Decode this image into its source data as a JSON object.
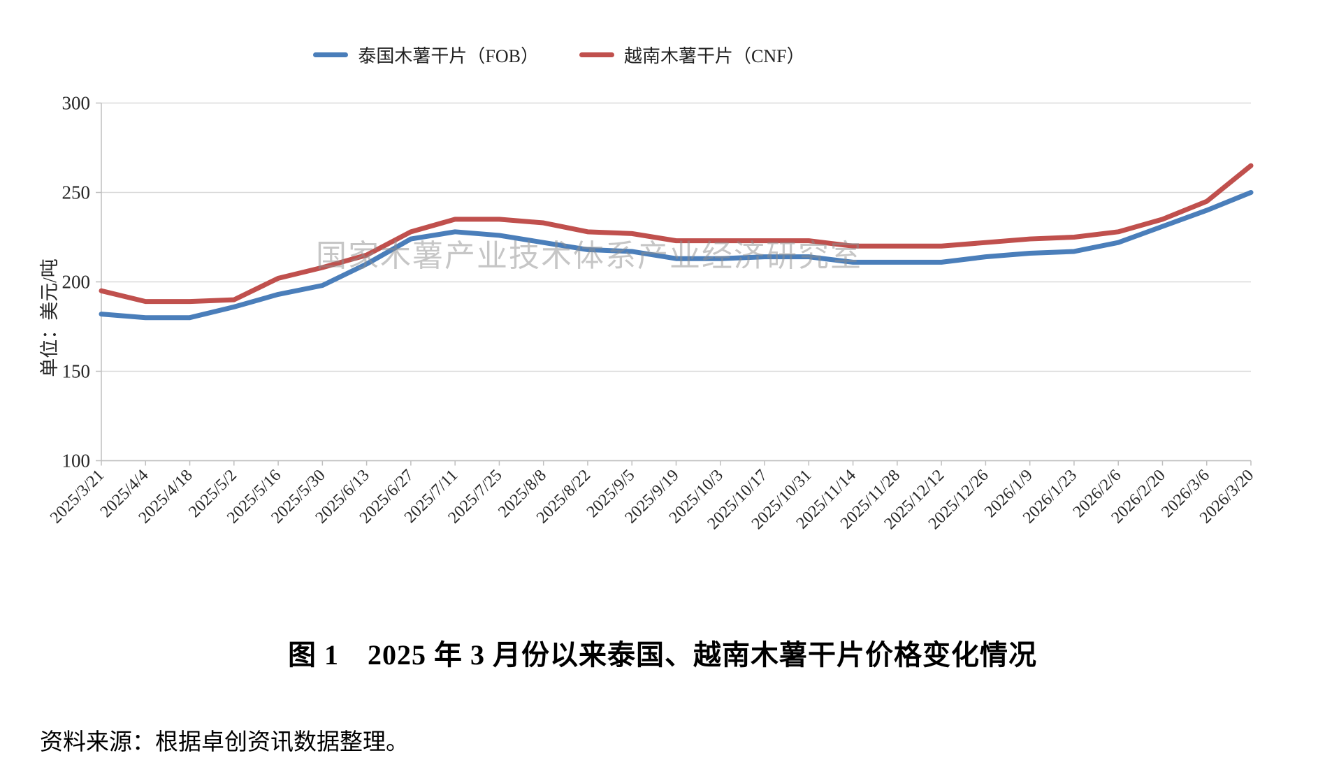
{
  "chart_data": {
    "type": "line",
    "title": "图 1　2025 年 3 月份以来泰国、越南木薯干片价格变化情况",
    "unit_label": "单位：美元/吨",
    "watermark": "国家木薯产业技术体系产业经济研究室",
    "source": "资料来源：根据卓创资讯数据整理。",
    "legend_position": "top",
    "grid": "horizontal",
    "ylim": [
      100,
      300
    ],
    "yticks": [
      100,
      150,
      200,
      250,
      300
    ],
    "categories": [
      "2025/3/21",
      "2025/4/4",
      "2025/4/18",
      "2025/5/2",
      "2025/5/16",
      "2025/5/30",
      "2025/6/13",
      "2025/6/27",
      "2025/7/11",
      "2025/7/25",
      "2025/8/8",
      "2025/8/22",
      "2025/9/5",
      "2025/9/19",
      "2025/10/3",
      "2025/10/17",
      "2025/10/31",
      "2025/11/14",
      "2025/11/28",
      "2025/12/12",
      "2025/12/26",
      "2026/1/9",
      "2026/1/23",
      "2026/2/6",
      "2026/2/20",
      "2026/3/6",
      "2026/3/20"
    ],
    "series": [
      {
        "name": "泰国木薯干片（FOB）",
        "color": "#4a7eba",
        "values": [
          182,
          180,
          180,
          186,
          193,
          198,
          210,
          224,
          228,
          226,
          222,
          218,
          217,
          213,
          213,
          214,
          214,
          211,
          211,
          211,
          214,
          216,
          217,
          222,
          231,
          240,
          250
        ]
      },
      {
        "name": "越南木薯干片（CNF）",
        "color": "#c0504d",
        "values": [
          195,
          189,
          189,
          190,
          202,
          208,
          215,
          228,
          235,
          235,
          233,
          228,
          227,
          223,
          223,
          223,
          223,
          220,
          220,
          220,
          222,
          224,
          225,
          228,
          235,
          245,
          265
        ]
      }
    ],
    "axis_color": "#bfbfbf",
    "gridline_color": "#d9d9d9",
    "tick_text_color": "#262626"
  }
}
